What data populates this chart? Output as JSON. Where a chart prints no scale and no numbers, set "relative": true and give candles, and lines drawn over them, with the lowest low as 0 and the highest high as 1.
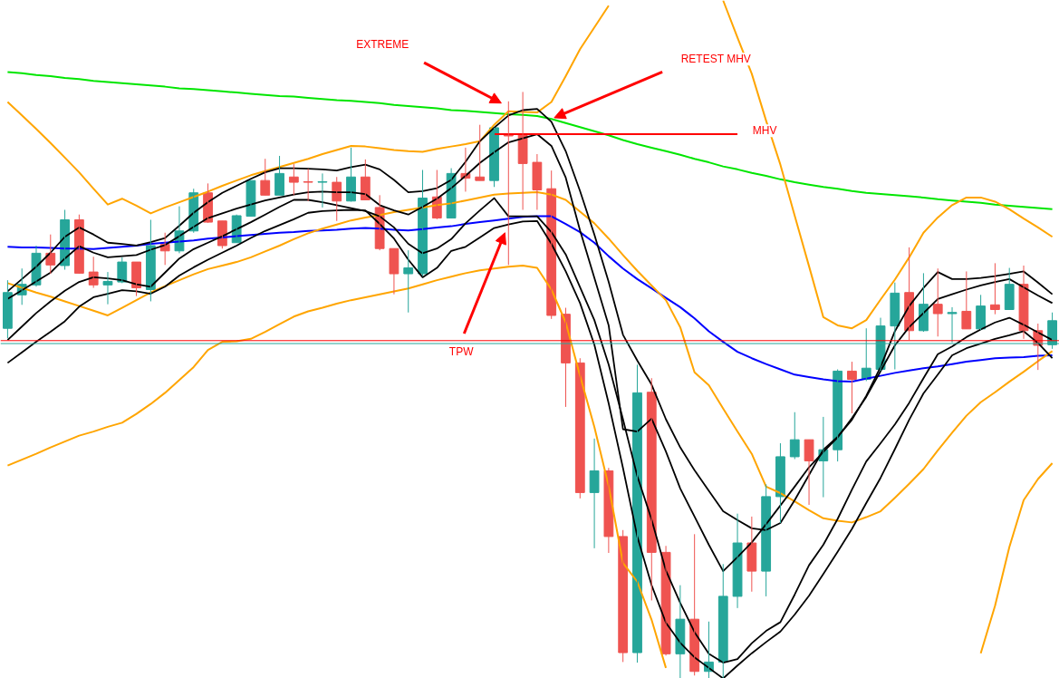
{
  "chart_data": {
    "type": "candlestick",
    "relative": true,
    "categories": [
      null,
      null,
      null,
      null,
      null,
      null,
      null,
      null,
      null,
      null,
      null,
      null,
      null,
      null,
      null,
      null,
      null,
      null,
      null,
      null,
      null,
      null,
      null,
      null,
      null,
      null,
      null,
      null,
      null,
      null,
      null,
      null,
      null,
      null,
      null,
      null,
      null,
      null,
      null,
      null,
      null,
      null,
      null,
      null,
      null,
      null,
      null,
      null,
      null,
      null,
      null,
      null,
      null,
      null,
      null,
      null,
      null,
      null,
      null,
      null,
      null,
      null,
      null,
      null,
      null,
      null,
      null,
      null,
      null,
      null,
      null,
      null,
      null,
      null
    ],
    "ohlc": [
      [
        0.597,
        0.679,
        0.58,
        0.658
      ],
      [
        0.654,
        0.699,
        0.637,
        0.672
      ],
      [
        0.671,
        0.738,
        0.668,
        0.725
      ],
      [
        0.725,
        0.757,
        0.69,
        0.705
      ],
      [
        0.704,
        0.799,
        0.697,
        0.782
      ],
      [
        0.782,
        0.791,
        0.69,
        0.691
      ],
      [
        0.693,
        0.719,
        0.666,
        0.671
      ],
      [
        0.671,
        0.693,
        0.638,
        0.677
      ],
      [
        0.676,
        0.718,
        0.674,
        0.71
      ],
      [
        0.71,
        0.71,
        0.652,
        0.666
      ],
      [
        0.663,
        0.782,
        0.643,
        0.738
      ],
      [
        0.74,
        0.76,
        0.705,
        0.729
      ],
      [
        0.729,
        0.805,
        0.725,
        0.763
      ],
      [
        0.763,
        0.835,
        0.76,
        0.828
      ],
      [
        0.828,
        0.844,
        0.777,
        0.778
      ],
      [
        0.78,
        0.78,
        0.733,
        0.738
      ],
      [
        0.743,
        0.791,
        0.743,
        0.789
      ],
      [
        0.788,
        0.849,
        0.788,
        0.849
      ],
      [
        0.849,
        0.886,
        0.824,
        0.824
      ],
      [
        0.824,
        0.891,
        0.824,
        0.861
      ],
      [
        0.855,
        0.877,
        0.824,
        0.846
      ],
      [
        0.847,
        0.869,
        0.814,
        0.846
      ],
      [
        0.846,
        0.861,
        0.803,
        0.847
      ],
      [
        0.846,
        0.855,
        0.78,
        0.814
      ],
      [
        0.814,
        0.905,
        0.813,
        0.855
      ],
      [
        0.855,
        0.885,
        0.816,
        0.816
      ],
      [
        0.803,
        0.824,
        0.73,
        0.733
      ],
      [
        0.733,
        0.733,
        0.655,
        0.69
      ],
      [
        0.69,
        0.73,
        0.624,
        0.7
      ],
      [
        0.69,
        0.867,
        0.686,
        0.819
      ],
      [
        0.821,
        0.867,
        0.783,
        0.785
      ],
      [
        0.785,
        0.87,
        0.785,
        0.861
      ],
      [
        0.861,
        0.905,
        0.83,
        0.853
      ],
      [
        0.855,
        0.944,
        0.849,
        0.849
      ],
      [
        0.849,
        0.939,
        0.838,
        0.939
      ],
      [
        0.928,
        0.984,
        0.705,
        0.925
      ],
      [
        0.928,
        1.0,
        0.799,
        0.878
      ],
      [
        0.88,
        0.894,
        0.799,
        0.833
      ],
      [
        0.835,
        0.866,
        0.613,
        0.619
      ],
      [
        0.621,
        0.632,
        0.463,
        0.538
      ],
      [
        0.538,
        0.546,
        0.307,
        0.317
      ],
      [
        0.317,
        0.409,
        0.222,
        0.354
      ],
      [
        0.354,
        0.359,
        0.214,
        0.242
      ],
      [
        0.242,
        0.253,
        0.028,
        0.044
      ],
      [
        0.044,
        0.535,
        0.027,
        0.487
      ],
      [
        0.488,
        0.512,
        0.133,
        0.215
      ],
      [
        0.215,
        0.226,
        0.039,
        0.042
      ],
      [
        0.042,
        0.159,
        0.0,
        0.101
      ],
      [
        0.101,
        0.246,
        0.005,
        0.012
      ],
      [
        0.012,
        0.097,
        0.0,
        0.028
      ],
      [
        0.028,
        0.195,
        0.0,
        0.14
      ],
      [
        0.14,
        0.281,
        0.12,
        0.231
      ],
      [
        0.231,
        0.276,
        0.148,
        0.183
      ],
      [
        0.183,
        0.331,
        0.14,
        0.31
      ],
      [
        0.31,
        0.401,
        0.265,
        0.378
      ],
      [
        0.378,
        0.454,
        0.374,
        0.407
      ],
      [
        0.407,
        0.407,
        0.296,
        0.371
      ],
      [
        0.371,
        0.446,
        0.309,
        0.39
      ],
      [
        0.39,
        0.527,
        0.37,
        0.524
      ],
      [
        0.524,
        0.54,
        0.452,
        0.51
      ],
      [
        0.51,
        0.597,
        0.507,
        0.529
      ],
      [
        0.527,
        0.615,
        0.524,
        0.601
      ],
      [
        0.601,
        0.675,
        0.527,
        0.657
      ],
      [
        0.658,
        0.735,
        0.577,
        0.593
      ],
      [
        0.593,
        0.691,
        0.591,
        0.638
      ],
      [
        0.638,
        0.699,
        0.583,
        0.622
      ],
      [
        0.622,
        0.633,
        0.573,
        0.624
      ],
      [
        0.626,
        0.694,
        0.596,
        0.596
      ],
      [
        0.596,
        0.654,
        0.594,
        0.635
      ],
      [
        0.637,
        0.708,
        0.621,
        0.629
      ],
      [
        0.629,
        0.7,
        0.629,
        0.672
      ],
      [
        0.672,
        0.704,
        0.579,
        0.593
      ],
      [
        0.593,
        0.605,
        0.526,
        0.568
      ],
      [
        0.569,
        0.624,
        0.562,
        0.61
      ]
    ],
    "colors": [
      "#26a69a",
      "#26a69a",
      "#26a69a",
      "#ef5350",
      "#26a69a",
      "#ef5350",
      "#ef5350",
      "#26a69a",
      "#26a69a",
      "#ef5350",
      "#26a69a",
      "#ef5350",
      "#26a69a",
      "#26a69a",
      "#ef5350",
      "#ef5350",
      "#26a69a",
      "#26a69a",
      "#ef5350",
      "#26a69a",
      "#ef5350",
      "#ef5350",
      "#26a69a",
      "#ef5350",
      "#26a69a",
      "#ef5350",
      "#ef5350",
      "#ef5350",
      "#26a69a",
      "#26a69a",
      "#ef5350",
      "#26a69a",
      "#ef5350",
      "#ef5350",
      "#26a69a",
      "#ef5350",
      "#ef5350",
      "#ef5350",
      "#ef5350",
      "#ef5350",
      "#ef5350",
      "#26a69a",
      "#ef5350",
      "#ef5350",
      "#26a69a",
      "#ef5350",
      "#ef5350",
      "#26a69a",
      "#ef5350",
      "#26a69a",
      "#26a69a",
      "#26a69a",
      "#ef5350",
      "#26a69a",
      "#26a69a",
      "#26a69a",
      "#ef5350",
      "#26a69a",
      "#26a69a",
      "#ef5350",
      "#26a69a",
      "#26a69a",
      "#26a69a",
      "#ef5350",
      "#26a69a",
      "#ef5350",
      "#26a69a",
      "#ef5350",
      "#26a69a",
      "#ef5350",
      "#26a69a",
      "#ef5350",
      "#ef5350",
      "#26a69a"
    ],
    "series": [
      {
        "type": "line",
        "color": "#00e600",
        "values": [
          1.034,
          1.032,
          1.029,
          1.027,
          1.024,
          1.022,
          1.019,
          1.017,
          1.015,
          1.013,
          1.011,
          1.009,
          1.006,
          1.005,
          1.003,
          1.001,
          0.999,
          0.997,
          0.995,
          0.993,
          0.992,
          0.99,
          0.988,
          0.986,
          0.985,
          0.983,
          0.981,
          0.978,
          0.976,
          0.974,
          0.972,
          0.969,
          0.968,
          0.966,
          0.964,
          0.962,
          0.961,
          0.959,
          0.954,
          0.947,
          0.94,
          0.933,
          0.926,
          0.918,
          0.911,
          0.905,
          0.899,
          0.893,
          0.886,
          0.88,
          0.873,
          0.868,
          0.862,
          0.857,
          0.851,
          0.846,
          0.842,
          0.838,
          0.835,
          0.831,
          0.828,
          0.826,
          0.824,
          0.822,
          0.82,
          0.817,
          0.815,
          0.813,
          0.811,
          0.808,
          0.806,
          0.804,
          0.802,
          0.8
        ]
      },
      {
        "type": "line",
        "color": "#0000ff",
        "values": [
          0.736,
          0.735,
          0.735,
          0.734,
          0.733,
          0.733,
          0.732,
          0.734,
          0.736,
          0.738,
          0.741,
          0.743,
          0.745,
          0.747,
          0.75,
          0.752,
          0.754,
          0.756,
          0.758,
          0.76,
          0.761,
          0.763,
          0.764,
          0.765,
          0.767,
          0.768,
          0.767,
          0.765,
          0.764,
          0.766,
          0.769,
          0.771,
          0.775,
          0.778,
          0.781,
          0.784,
          0.787,
          0.788,
          0.788,
          0.775,
          0.761,
          0.743,
          0.72,
          0.699,
          0.681,
          0.665,
          0.649,
          0.633,
          0.614,
          0.592,
          0.574,
          0.557,
          0.546,
          0.536,
          0.527,
          0.518,
          0.514,
          0.51,
          0.507,
          0.506,
          0.511,
          0.516,
          0.521,
          0.525,
          0.529,
          0.532,
          0.536,
          0.54,
          0.543,
          0.546,
          0.547,
          0.548,
          0.55,
          0.551
        ]
      },
      {
        "type": "line",
        "color": "#ffa500",
        "values": [
          0.983,
          0.96,
          0.937,
          0.913,
          0.888,
          0.863,
          0.835,
          0.808,
          0.818,
          0.806,
          0.793,
          0.803,
          0.812,
          0.821,
          0.83,
          0.84,
          0.849,
          0.858,
          0.865,
          0.872,
          0.879,
          0.886,
          0.894,
          0.901,
          0.908,
          0.907,
          0.904,
          0.901,
          0.899,
          0.898,
          0.903,
          0.907,
          0.911,
          0.916,
          0.944,
          0.967,
          0.966,
          0.965,
          0.983,
          1.027,
          1.073,
          1.11,
          1.147,
          null,
          null,
          null,
          null,
          null,
          null,
          null,
          1.156,
          1.093,
          1.031,
          0.951,
          0.876,
          0.789,
          0.703,
          0.616,
          0.602,
          0.597,
          0.611,
          0.646,
          0.68,
          0.718,
          0.76,
          0.786,
          0.807,
          0.82,
          0.82,
          0.813,
          0.8,
          0.784,
          0.769,
          0.753
        ]
      },
      {
        "type": "line",
        "color": "#ffa500",
        "values": [
          0.363,
          0.373,
          0.383,
          0.394,
          0.404,
          0.414,
          0.421,
          0.429,
          0.436,
          0.451,
          0.468,
          0.487,
          0.509,
          0.531,
          0.56,
          0.574,
          0.575,
          0.579,
          0.591,
          0.604,
          0.617,
          0.626,
          0.632,
          0.639,
          0.645,
          0.65,
          0.655,
          0.66,
          0.665,
          0.672,
          0.679,
          0.685,
          0.691,
          0.696,
          0.699,
          0.702,
          0.704,
          0.7,
          0.663,
          0.607,
          0.516,
          0.429,
          0.328,
          0.197,
          0.165,
          0.1,
          0.018,
          null,
          null,
          null,
          null,
          null,
          null,
          null,
          null,
          null,
          null,
          null,
          null,
          null,
          null,
          null,
          null,
          null,
          null,
          null,
          null,
          null,
          0.043,
          0.124,
          0.224,
          0.304,
          0.34,
          0.367
        ]
      },
      {
        "type": "line",
        "color": "#ffa500",
        "values": [
          0.674,
          0.666,
          0.658,
          0.651,
          0.643,
          0.635,
          0.627,
          0.619,
          0.632,
          0.645,
          0.658,
          0.669,
          0.679,
          0.689,
          0.698,
          0.704,
          0.71,
          0.718,
          0.728,
          0.738,
          0.749,
          0.759,
          0.767,
          0.774,
          0.781,
          0.786,
          0.79,
          0.795,
          0.799,
          0.803,
          0.807,
          0.81,
          0.815,
          0.82,
          0.825,
          0.827,
          0.828,
          0.829,
          0.825,
          0.816,
          0.796,
          0.776,
          0.75,
          0.722,
          0.695,
          0.67,
          0.645,
          0.599,
          0.522,
          0.5,
          0.46,
          0.421,
          0.383,
          0.327,
          0.316,
          0.302,
          0.287,
          0.273,
          0.269,
          0.266,
          0.275,
          0.285,
          0.308,
          0.332,
          0.357,
          0.389,
          0.419,
          0.448,
          0.471,
          0.488,
          0.506,
          0.523,
          0.541,
          0.558
        ]
      },
      {
        "type": "line",
        "color": "#000000",
        "values": [
          0.66,
          0.681,
          0.702,
          0.726,
          0.753,
          0.769,
          0.757,
          0.743,
          0.741,
          0.738,
          0.744,
          0.751,
          0.772,
          0.794,
          0.812,
          0.828,
          0.84,
          0.852,
          0.863,
          0.87,
          0.87,
          0.869,
          0.868,
          0.866,
          0.872,
          0.876,
          0.868,
          0.85,
          0.829,
          0.831,
          0.836,
          0.85,
          0.881,
          0.916,
          0.939,
          0.96,
          0.969,
          0.971,
          0.949,
          0.899,
          0.831,
          0.757,
          0.676,
          0.586,
          0.542,
          0.501,
          0.442,
          0.394,
          0.355,
          0.32,
          0.285,
          0.27,
          0.256,
          0.253,
          0.265,
          0.304,
          0.347,
          0.39,
          0.412,
          0.441,
          0.482,
          0.531,
          0.592,
          0.635,
          0.666,
          0.693,
          0.681,
          0.681,
          0.683,
          0.686,
          0.69,
          0.694,
          0.675,
          0.655
        ]
      },
      {
        "type": "line",
        "color": "#000000",
        "values": [
          0.647,
          0.662,
          0.677,
          0.692,
          0.716,
          0.737,
          0.726,
          0.718,
          0.72,
          0.722,
          0.731,
          0.739,
          0.754,
          0.77,
          0.785,
          0.793,
          0.801,
          0.808,
          0.815,
          0.82,
          0.825,
          0.829,
          0.83,
          0.829,
          0.829,
          0.826,
          0.807,
          0.798,
          0.791,
          0.804,
          0.818,
          0.836,
          0.857,
          0.879,
          0.897,
          0.914,
          0.921,
          0.928,
          0.908,
          0.854,
          0.764,
          0.683,
          0.602,
          0.425,
          0.421,
          0.443,
          0.387,
          0.324,
          0.276,
          0.228,
          0.183,
          0.207,
          0.232,
          0.263,
          0.295,
          0.327,
          0.36,
          0.386,
          0.411,
          0.444,
          0.48,
          0.524,
          0.568,
          0.599,
          0.623,
          0.647,
          0.655,
          0.663,
          0.67,
          0.676,
          0.681,
          0.667,
          0.653,
          0.64
        ]
      },
      {
        "type": "line",
        "color": "#000000",
        "values": [
          0.577,
          0.6,
          0.623,
          0.643,
          0.661,
          0.676,
          0.684,
          0.682,
          0.679,
          0.672,
          0.668,
          0.692,
          0.716,
          0.732,
          0.743,
          0.754,
          0.766,
          0.778,
          0.791,
          0.804,
          0.816,
          0.816,
          0.812,
          0.807,
          0.802,
          0.797,
          0.788,
          0.769,
          0.741,
          0.725,
          0.733,
          0.749,
          0.776,
          0.798,
          0.819,
          0.788,
          0.788,
          0.788,
          0.761,
          0.723,
          0.667,
          0.611,
          0.535,
          0.442,
          0.345,
          0.271,
          0.184,
          0.129,
          0.079,
          0.042,
          0.027,
          0.033,
          0.06,
          0.081,
          0.096,
          0.143,
          0.193,
          0.228,
          0.272,
          0.322,
          0.37,
          0.401,
          0.433,
          0.47,
          0.512,
          0.553,
          0.566,
          0.582,
          0.595,
          0.607,
          0.615,
          0.603,
          0.59,
          0.577
        ]
      },
      {
        "type": "line",
        "color": "#000000",
        "values": [
          0.538,
          0.556,
          0.574,
          0.591,
          0.609,
          0.634,
          0.65,
          0.656,
          0.662,
          0.66,
          0.656,
          0.668,
          0.687,
          0.701,
          0.714,
          0.726,
          0.738,
          0.751,
          0.763,
          0.773,
          0.783,
          0.794,
          0.797,
          0.798,
          0.799,
          0.798,
          0.775,
          0.75,
          0.714,
          0.684,
          0.7,
          0.729,
          0.736,
          0.752,
          0.768,
          0.774,
          0.779,
          0.78,
          0.741,
          0.694,
          0.64,
          0.569,
          0.469,
          0.359,
          0.242,
          0.159,
          0.095,
          0.061,
          0.036,
          0.018,
          0.0,
          0.022,
          0.043,
          0.062,
          0.08,
          0.109,
          0.141,
          0.178,
          0.216,
          0.255,
          0.299,
          0.342,
          0.391,
          0.441,
          0.486,
          0.518,
          0.551,
          0.563,
          0.571,
          0.579,
          0.585,
          0.592,
          0.572,
          0.546
        ]
      },
      {
        "type": "line",
        "color": "#ff0000",
        "values": [
          null,
          null,
          null,
          null,
          null,
          null,
          null,
          null,
          null,
          null,
          null,
          null,
          null,
          null,
          null,
          null,
          null,
          null,
          null,
          null,
          null,
          null,
          null,
          null,
          null,
          null,
          null,
          null,
          null,
          null,
          null,
          null,
          null,
          null,
          0.928,
          0.928,
          0.928,
          0.928,
          0.928,
          0.928,
          0.928,
          0.928,
          0.928,
          0.928,
          0.928,
          0.928,
          0.928,
          0.928,
          0.928,
          0.928,
          0.928,
          0.928,
          null,
          null,
          null,
          null,
          null,
          null,
          null,
          null,
          null,
          null,
          null,
          null,
          null,
          null,
          null,
          null,
          null,
          null,
          null,
          null,
          null,
          null
        ]
      }
    ],
    "ref_lines": [
      {
        "axis": "y",
        "value": 0.576,
        "color": "#ff0000"
      },
      {
        "axis": "y",
        "value": 0.571,
        "color": "#26a69a"
      }
    ],
    "annotations": [
      "EXTREME",
      "RETEST MHV",
      "MHV",
      "TPW"
    ]
  }
}
